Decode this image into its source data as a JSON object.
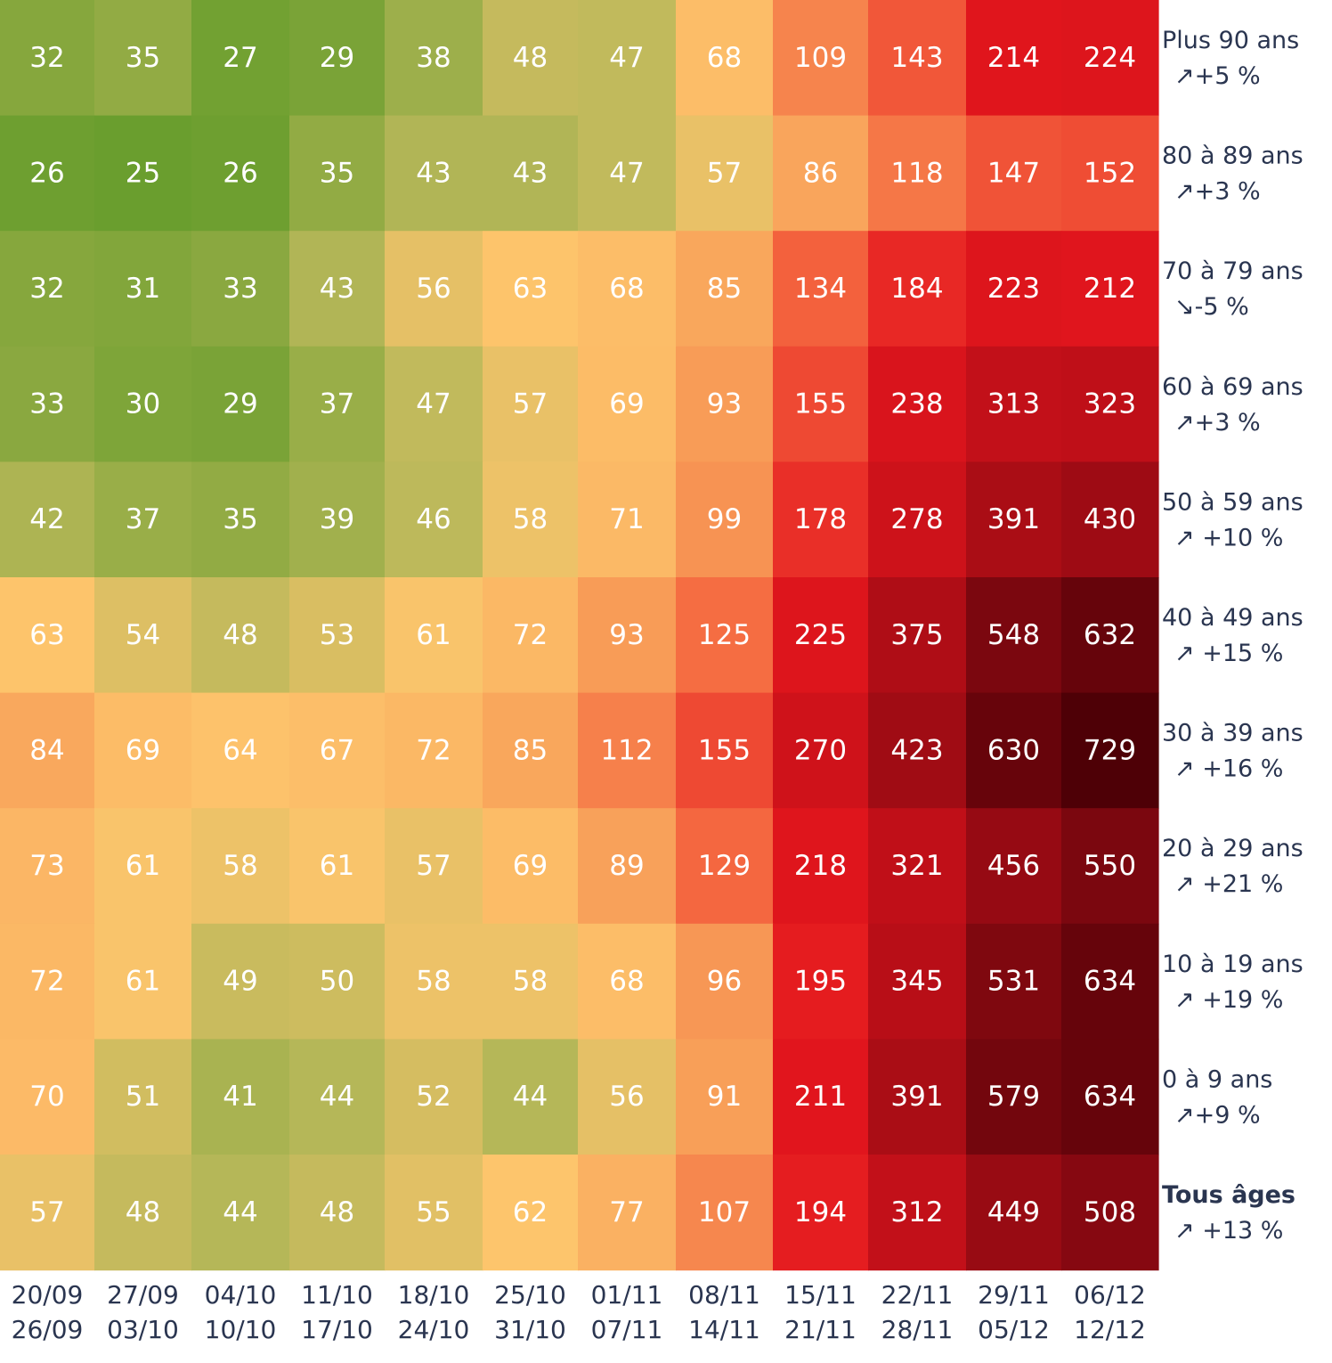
{
  "chart_data": {
    "type": "heatmap",
    "title": "",
    "columns": [
      {
        "start": "20/09",
        "end": "26/09"
      },
      {
        "start": "27/09",
        "end": "03/10"
      },
      {
        "start": "04/10",
        "end": "10/10"
      },
      {
        "start": "11/10",
        "end": "17/10"
      },
      {
        "start": "18/10",
        "end": "24/10"
      },
      {
        "start": "25/10",
        "end": "31/10"
      },
      {
        "start": "01/11",
        "end": "07/11"
      },
      {
        "start": "08/11",
        "end": "14/11"
      },
      {
        "start": "15/11",
        "end": "21/11"
      },
      {
        "start": "22/11",
        "end": "28/11"
      },
      {
        "start": "29/11",
        "end": "05/12"
      },
      {
        "start": "06/12",
        "end": "12/12"
      }
    ],
    "rows": [
      {
        "label": "Plus 90 ans",
        "trend": "↗+5 %",
        "bold": false,
        "values": [
          32,
          35,
          27,
          29,
          38,
          48,
          47,
          68,
          109,
          143,
          214,
          224
        ]
      },
      {
        "label": "80 à 89 ans",
        "trend": "↗+3 %",
        "bold": false,
        "values": [
          26,
          25,
          26,
          35,
          43,
          43,
          47,
          57,
          86,
          118,
          147,
          152
        ]
      },
      {
        "label": "70 à 79 ans",
        "trend": "↘-5 %",
        "bold": false,
        "values": [
          32,
          31,
          33,
          43,
          56,
          63,
          68,
          85,
          134,
          184,
          223,
          212
        ]
      },
      {
        "label": "60 à 69 ans",
        "trend": "↗+3 %",
        "bold": false,
        "values": [
          33,
          30,
          29,
          37,
          47,
          57,
          69,
          93,
          155,
          238,
          313,
          323
        ]
      },
      {
        "label": "50 à 59 ans",
        "trend": "↗ +10 %",
        "bold": false,
        "values": [
          42,
          37,
          35,
          39,
          46,
          58,
          71,
          99,
          178,
          278,
          391,
          430
        ]
      },
      {
        "label": "40 à 49 ans",
        "trend": "↗ +15 %",
        "bold": false,
        "values": [
          63,
          54,
          48,
          53,
          61,
          72,
          93,
          125,
          225,
          375,
          548,
          632
        ]
      },
      {
        "label": "30 à 39 ans",
        "trend": "↗ +16 %",
        "bold": false,
        "values": [
          84,
          69,
          64,
          67,
          72,
          85,
          112,
          155,
          270,
          423,
          630,
          729
        ]
      },
      {
        "label": "20 à 29 ans",
        "trend": "↗ +21 %",
        "bold": false,
        "values": [
          73,
          61,
          58,
          61,
          57,
          69,
          89,
          129,
          218,
          321,
          456,
          550
        ]
      },
      {
        "label": "10 à 19 ans",
        "trend": "↗ +19 %",
        "bold": false,
        "values": [
          72,
          61,
          49,
          50,
          58,
          58,
          68,
          96,
          195,
          345,
          531,
          634
        ]
      },
      {
        "label": "0 à 9 ans",
        "trend": "↗+9 %",
        "bold": false,
        "values": [
          70,
          51,
          41,
          44,
          52,
          44,
          56,
          91,
          211,
          391,
          579,
          634
        ]
      },
      {
        "label": "Tous âges",
        "trend": "↗ +13 %",
        "bold": true,
        "values": [
          57,
          48,
          44,
          48,
          55,
          62,
          77,
          107,
          194,
          312,
          449,
          508
        ]
      }
    ],
    "color_scale": {
      "stops": [
        {
          "value": 25,
          "color": "#6a9e2e"
        },
        {
          "value": 45,
          "color": "#b9b85a"
        },
        {
          "value": 62,
          "color": "#fdc56c"
        },
        {
          "value": 90,
          "color": "#f8a059"
        },
        {
          "value": 130,
          "color": "#f4663f"
        },
        {
          "value": 200,
          "color": "#e4161d"
        },
        {
          "value": 330,
          "color": "#bd0f18"
        },
        {
          "value": 520,
          "color": "#820810"
        },
        {
          "value": 730,
          "color": "#4e0006"
        }
      ]
    }
  }
}
